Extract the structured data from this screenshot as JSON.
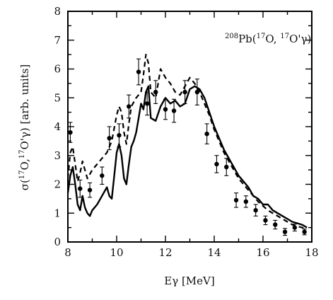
{
  "chart_data": {
    "type": "line",
    "title": "",
    "annotation": {
      "mass_target": "208",
      "element_target": "Pb",
      "open": "(",
      "mass_proj": "17",
      "element_proj": "O, ",
      "mass_eject": "17",
      "element_eject": "O'γ",
      "close": ")"
    },
    "xlabel": {
      "main": "Eγ [MeV]"
    },
    "ylabel": {
      "prefix": "σ(",
      "mass1": "17",
      "mid": "O,",
      "mass2": "17",
      "suffix": "O'γ)  [arb. units]"
    },
    "xlim": [
      8,
      18
    ],
    "ylim": [
      0,
      8
    ],
    "x_ticks": [
      "8",
      "10",
      "12",
      "14",
      "16",
      "18"
    ],
    "y_ticks": [
      "0",
      "1",
      "2",
      "3",
      "4",
      "5",
      "6",
      "7",
      "8"
    ],
    "grid": false,
    "legend": "none",
    "series": [
      {
        "style": "solid",
        "x": [
          8.0,
          8.1,
          8.2,
          8.3,
          8.4,
          8.5,
          8.6,
          8.7,
          8.8,
          8.9,
          9.0,
          9.2,
          9.4,
          9.6,
          9.7,
          9.8,
          9.9,
          10.0,
          10.1,
          10.2,
          10.3,
          10.4,
          10.5,
          10.6,
          10.7,
          10.8,
          10.9,
          11.0,
          11.1,
          11.2,
          11.3,
          11.4,
          11.6,
          11.8,
          12.0,
          12.2,
          12.4,
          12.6,
          12.8,
          13.0,
          13.2,
          13.4,
          13.6,
          13.8,
          14.0,
          14.2,
          14.4,
          14.6,
          14.8,
          15.0,
          15.2,
          15.4,
          15.6,
          15.8,
          16.0,
          16.2,
          16.4,
          16.6,
          16.8,
          17.0,
          17.2,
          17.4,
          17.6,
          17.8
        ],
        "y": [
          1.7,
          2.3,
          2.6,
          2.0,
          1.3,
          1.1,
          1.6,
          1.2,
          1.0,
          0.9,
          1.1,
          1.3,
          1.6,
          1.9,
          1.6,
          1.5,
          2.3,
          3.1,
          3.4,
          3.0,
          2.2,
          2.0,
          2.7,
          3.3,
          3.5,
          3.8,
          4.3,
          4.8,
          4.6,
          5.2,
          5.4,
          4.3,
          4.2,
          4.7,
          5.0,
          4.8,
          4.9,
          4.7,
          4.8,
          5.3,
          5.4,
          5.3,
          5.0,
          4.5,
          4.0,
          3.6,
          3.2,
          2.9,
          2.6,
          2.3,
          2.1,
          1.9,
          1.6,
          1.5,
          1.3,
          1.3,
          1.1,
          1.0,
          0.9,
          0.8,
          0.7,
          0.65,
          0.6,
          0.5
        ]
      },
      {
        "style": "dashed",
        "x": [
          8.0,
          8.1,
          8.2,
          8.3,
          8.4,
          8.5,
          8.6,
          8.7,
          8.8,
          9.0,
          9.2,
          9.4,
          9.6,
          9.8,
          10.0,
          10.1,
          10.2,
          10.3,
          10.4,
          10.5,
          10.6,
          10.8,
          11.0,
          11.1,
          11.2,
          11.3,
          11.4,
          11.6,
          11.8,
          12.0,
          12.2,
          12.4,
          12.6,
          12.8,
          13.0,
          13.2,
          13.4,
          13.6,
          13.8,
          14.0,
          14.2,
          14.4,
          14.6,
          14.8,
          15.0,
          15.2,
          15.4,
          15.6,
          15.8,
          16.0,
          16.2,
          16.4,
          16.6,
          16.8,
          17.0,
          17.2,
          17.4,
          17.6,
          17.8
        ],
        "y": [
          2.2,
          3.1,
          3.3,
          2.7,
          2.1,
          2.4,
          2.8,
          2.5,
          2.2,
          2.5,
          2.7,
          2.9,
          3.1,
          3.5,
          4.4,
          4.7,
          4.5,
          3.8,
          3.4,
          4.1,
          4.7,
          5.0,
          5.2,
          5.8,
          6.5,
          6.2,
          5.2,
          5.0,
          6.0,
          5.7,
          5.5,
          5.2,
          5.1,
          5.4,
          5.7,
          5.5,
          5.2,
          4.8,
          4.4,
          3.9,
          3.5,
          3.1,
          2.8,
          2.5,
          2.2,
          2.0,
          1.8,
          1.6,
          1.4,
          1.25,
          1.1,
          1.0,
          0.9,
          0.8,
          0.7,
          0.6,
          0.55,
          0.5,
          0.45
        ]
      },
      {
        "style": "points",
        "x": [
          8.1,
          8.5,
          8.9,
          9.4,
          9.7,
          10.1,
          10.5,
          10.9,
          11.25,
          11.6,
          12.0,
          12.35,
          12.8,
          13.3,
          13.7,
          14.1,
          14.5,
          14.9,
          15.3,
          15.7,
          16.1,
          16.5,
          16.9,
          17.3,
          17.7
        ],
        "y": [
          3.8,
          1.85,
          1.8,
          2.3,
          3.6,
          3.7,
          4.7,
          5.9,
          4.8,
          5.2,
          4.6,
          4.55,
          5.2,
          5.2,
          3.75,
          2.7,
          2.6,
          1.45,
          1.4,
          1.1,
          0.75,
          0.6,
          0.35,
          0.5,
          0.35
        ],
        "err": [
          0.35,
          0.3,
          0.25,
          0.3,
          0.4,
          0.4,
          0.4,
          0.45,
          0.4,
          0.4,
          0.35,
          0.4,
          0.4,
          0.45,
          0.35,
          0.3,
          0.3,
          0.25,
          0.2,
          0.2,
          0.15,
          0.15,
          0.12,
          0.12,
          0.1
        ]
      }
    ]
  }
}
